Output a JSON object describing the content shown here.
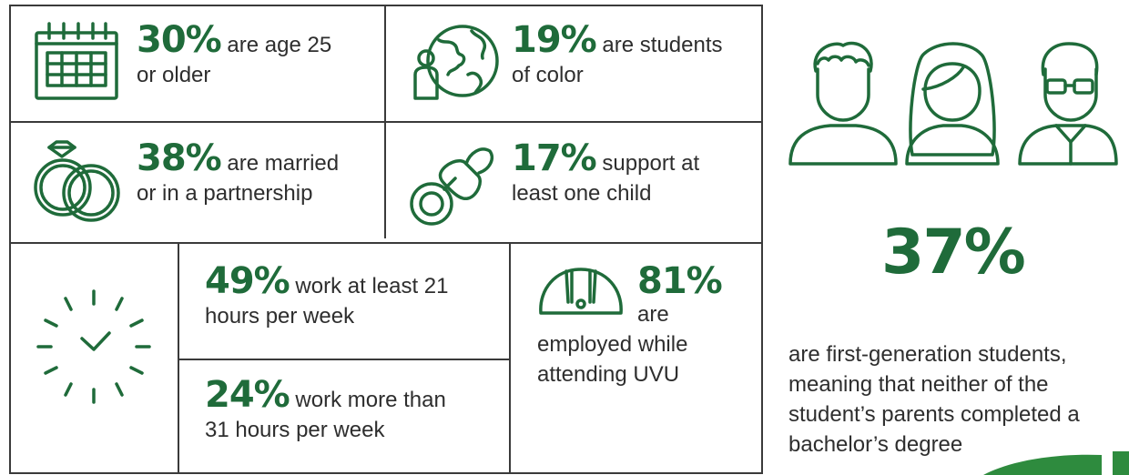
{
  "stats": {
    "age": {
      "pct": "30%",
      "text_a": "are age 25",
      "text_b": "or older"
    },
    "color": {
      "pct": "19%",
      "text_a": "are students",
      "text_b": "of color"
    },
    "married": {
      "pct": "38%",
      "text_a": "are married",
      "text_b": "or in a partnership"
    },
    "child": {
      "pct": "17%",
      "text_a": "support at",
      "text_b": "least one child"
    },
    "work21": {
      "pct": "49%",
      "text_a": "work at least 21",
      "text_b": "hours per week"
    },
    "work31": {
      "pct": "24%",
      "text_a": "work more than",
      "text_b": "31 hours per week"
    },
    "employed": {
      "pct": "81%",
      "text_a": "are",
      "text_b": "employed while",
      "text_c": "attending UVU"
    }
  },
  "first_gen": {
    "pct": "37%",
    "lines": [
      "are first-generation students,",
      "meaning that neither of the",
      "student’s parents completed a",
      "bachelor’s degree"
    ]
  },
  "colors": {
    "accent": "#1f6b3a",
    "text": "#2e2e2e",
    "border": "#3a3a3a"
  },
  "icons": [
    "calendar-icon",
    "globe-person-icon",
    "rings-icon",
    "pacifier-icon",
    "clock-icon",
    "hardhat-icon",
    "people-icon"
  ]
}
